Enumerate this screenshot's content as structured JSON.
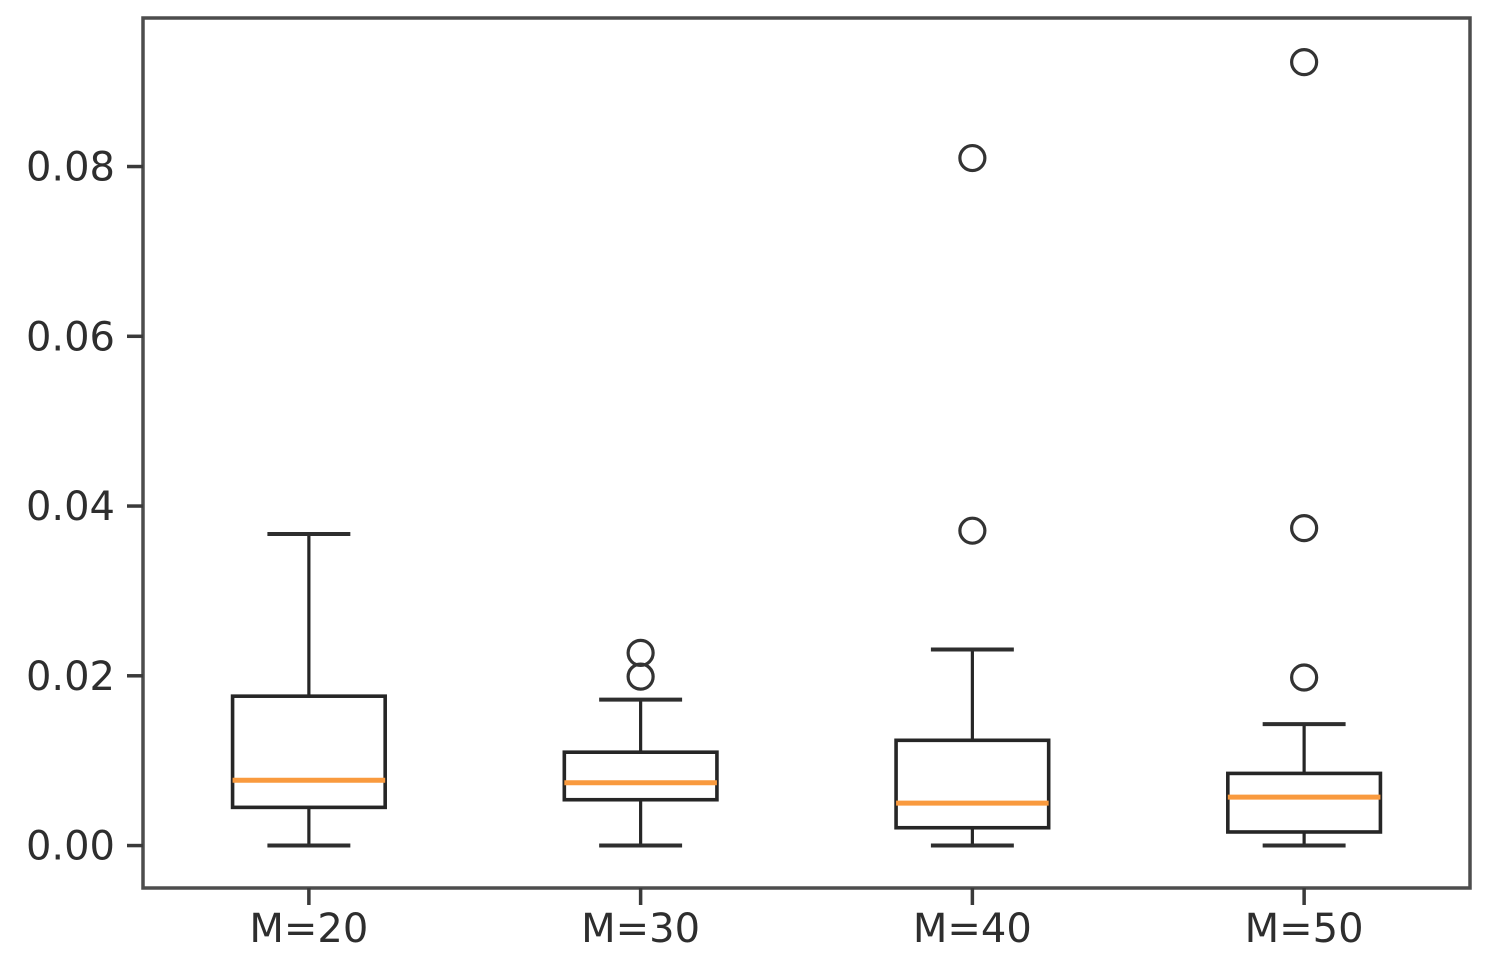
{
  "figure": {
    "background": "#ffffff"
  },
  "chart_data": {
    "type": "boxplot",
    "title": "",
    "xlabel": "",
    "ylabel": "",
    "grid": false,
    "legend": false,
    "categories": [
      "M=20",
      "M=30",
      "M=40",
      "M=50"
    ],
    "series": [
      {
        "name": "M=20",
        "whislo": 0.0,
        "q1": 0.0045,
        "med": 0.0077,
        "q3": 0.0176,
        "whishi": 0.0367,
        "fliers": []
      },
      {
        "name": "M=30",
        "whislo": 0.0,
        "q1": 0.0054,
        "med": 0.0074,
        "q3": 0.011,
        "whishi": 0.0172,
        "fliers": [
          0.0199,
          0.0227
        ]
      },
      {
        "name": "M=40",
        "whislo": 0.0,
        "q1": 0.0021,
        "med": 0.005,
        "q3": 0.0124,
        "whishi": 0.0231,
        "fliers": [
          0.0371,
          0.081
        ]
      },
      {
        "name": "M=50",
        "whislo": 0.0,
        "q1": 0.0016,
        "med": 0.0057,
        "q3": 0.0085,
        "whishi": 0.0143,
        "fliers": [
          0.0198,
          0.0374,
          0.0923
        ]
      }
    ],
    "ylim": [
      -0.005,
      0.0975
    ],
    "xlim": [
      0.5,
      4.5
    ],
    "yticks": [
      0.0,
      0.02,
      0.04,
      0.06,
      0.08
    ],
    "ytick_labels": [
      "0.00",
      "0.02",
      "0.04",
      "0.06",
      "0.08"
    ],
    "colors": {
      "background": "#ffffff",
      "box_edge": "#262626",
      "whisker": "#262626",
      "cap": "#2e2e2e",
      "median": "#f99a3e",
      "spine": "#4d4d4d",
      "tick": "#3a3a3a",
      "tick_label": "#2e2e2e",
      "flier_edge": "#333333"
    }
  }
}
